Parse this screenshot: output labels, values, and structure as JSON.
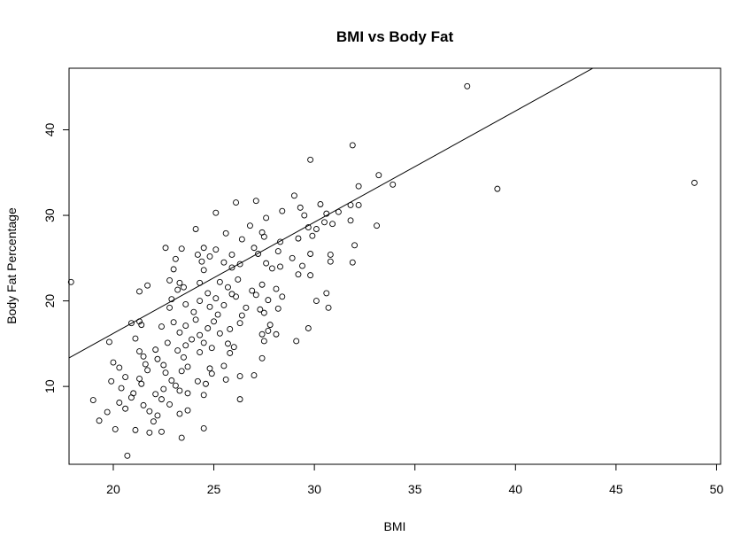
{
  "chart_data": {
    "type": "scatter",
    "title": "BMI vs Body Fat",
    "xlabel": "BMI",
    "ylabel": "Body Fat Percentage",
    "xlim": [
      17.8,
      50.2
    ],
    "ylim": [
      0.9,
      47.2
    ],
    "xticks": [
      20,
      25,
      30,
      35,
      40,
      45,
      50
    ],
    "yticks": [
      10,
      20,
      30,
      40
    ],
    "grid": false,
    "regression_line": {
      "intercept": -9.8,
      "slope": 1.3
    },
    "points": [
      [
        37.6,
        45.1
      ],
      [
        39.1,
        33.1
      ],
      [
        48.9,
        33.8
      ],
      [
        29.8,
        36.5
      ],
      [
        31.9,
        38.2
      ],
      [
        33.2,
        34.7
      ],
      [
        33.9,
        33.6
      ],
      [
        32.2,
        33.4
      ],
      [
        29.0,
        32.3
      ],
      [
        26.1,
        31.5
      ],
      [
        27.1,
        31.7
      ],
      [
        29.3,
        30.9
      ],
      [
        30.3,
        31.3
      ],
      [
        31.8,
        31.2
      ],
      [
        32.2,
        31.2
      ],
      [
        25.1,
        30.3
      ],
      [
        28.4,
        30.5
      ],
      [
        30.6,
        30.2
      ],
      [
        31.2,
        30.4
      ],
      [
        27.6,
        29.7
      ],
      [
        29.5,
        30.0
      ],
      [
        30.5,
        29.2
      ],
      [
        30.9,
        29.0
      ],
      [
        31.8,
        29.4
      ],
      [
        26.8,
        28.8
      ],
      [
        29.7,
        28.6
      ],
      [
        30.1,
        28.4
      ],
      [
        33.1,
        28.8
      ],
      [
        24.1,
        28.4
      ],
      [
        27.4,
        28.0
      ],
      [
        29.9,
        27.6
      ],
      [
        25.6,
        27.9
      ],
      [
        26.4,
        27.2
      ],
      [
        27.5,
        27.5
      ],
      [
        28.3,
        26.9
      ],
      [
        29.2,
        27.3
      ],
      [
        32.0,
        26.5
      ],
      [
        22.6,
        26.2
      ],
      [
        23.4,
        26.1
      ],
      [
        24.5,
        26.2
      ],
      [
        25.1,
        26.0
      ],
      [
        27.0,
        26.2
      ],
      [
        28.2,
        25.8
      ],
      [
        29.8,
        25.5
      ],
      [
        30.8,
        25.4
      ],
      [
        24.2,
        25.4
      ],
      [
        24.8,
        25.2
      ],
      [
        25.9,
        25.4
      ],
      [
        27.2,
        25.5
      ],
      [
        28.9,
        25.0
      ],
      [
        31.9,
        24.5
      ],
      [
        30.8,
        24.6
      ],
      [
        23.1,
        24.9
      ],
      [
        24.4,
        24.6
      ],
      [
        25.5,
        24.5
      ],
      [
        26.3,
        24.3
      ],
      [
        27.6,
        24.4
      ],
      [
        28.3,
        24.0
      ],
      [
        29.4,
        24.1
      ],
      [
        23.0,
        23.7
      ],
      [
        24.5,
        23.6
      ],
      [
        25.9,
        23.9
      ],
      [
        27.9,
        23.8
      ],
      [
        29.2,
        23.1
      ],
      [
        29.8,
        23.0
      ],
      [
        22.8,
        22.4
      ],
      [
        23.3,
        22.1
      ],
      [
        25.3,
        22.2
      ],
      [
        26.2,
        22.5
      ],
      [
        27.4,
        21.9
      ],
      [
        17.9,
        22.2
      ],
      [
        21.7,
        21.8
      ],
      [
        23.5,
        21.6
      ],
      [
        24.3,
        22.1
      ],
      [
        25.7,
        21.6
      ],
      [
        26.9,
        21.2
      ],
      [
        28.1,
        21.4
      ],
      [
        21.3,
        21.1
      ],
      [
        23.2,
        21.3
      ],
      [
        24.7,
        20.9
      ],
      [
        25.9,
        20.8
      ],
      [
        27.1,
        20.7
      ],
      [
        28.4,
        20.5
      ],
      [
        30.6,
        20.9
      ],
      [
        22.9,
        20.2
      ],
      [
        24.3,
        20.0
      ],
      [
        25.1,
        20.3
      ],
      [
        26.1,
        20.5
      ],
      [
        27.7,
        20.1
      ],
      [
        30.1,
        20.0
      ],
      [
        23.6,
        19.6
      ],
      [
        24.8,
        19.3
      ],
      [
        25.5,
        19.5
      ],
      [
        26.6,
        19.2
      ],
      [
        27.3,
        19.0
      ],
      [
        28.2,
        19.1
      ],
      [
        30.7,
        19.2
      ],
      [
        22.8,
        19.2
      ],
      [
        24.0,
        18.7
      ],
      [
        25.2,
        18.4
      ],
      [
        26.4,
        18.3
      ],
      [
        27.5,
        18.6
      ],
      [
        20.9,
        17.4
      ],
      [
        21.3,
        17.6
      ],
      [
        23.0,
        17.5
      ],
      [
        24.1,
        17.8
      ],
      [
        25.0,
        17.6
      ],
      [
        26.3,
        17.4
      ],
      [
        27.8,
        17.2
      ],
      [
        21.4,
        17.2
      ],
      [
        22.4,
        17.0
      ],
      [
        23.6,
        17.1
      ],
      [
        24.7,
        16.8
      ],
      [
        25.8,
        16.7
      ],
      [
        27.7,
        16.5
      ],
      [
        29.7,
        16.8
      ],
      [
        23.3,
        16.3
      ],
      [
        24.3,
        16.0
      ],
      [
        25.3,
        16.2
      ],
      [
        27.4,
        16.1
      ],
      [
        28.1,
        16.1
      ],
      [
        21.1,
        15.6
      ],
      [
        23.9,
        15.5
      ],
      [
        24.5,
        15.1
      ],
      [
        25.7,
        15.0
      ],
      [
        27.5,
        15.3
      ],
      [
        29.1,
        15.3
      ],
      [
        19.8,
        15.2
      ],
      [
        22.7,
        15.1
      ],
      [
        23.6,
        14.8
      ],
      [
        24.9,
        14.5
      ],
      [
        26.0,
        14.6
      ],
      [
        21.3,
        14.1
      ],
      [
        22.1,
        14.3
      ],
      [
        23.2,
        14.2
      ],
      [
        24.3,
        14.0
      ],
      [
        25.8,
        13.9
      ],
      [
        21.5,
        13.5
      ],
      [
        22.2,
        13.2
      ],
      [
        23.5,
        13.4
      ],
      [
        27.4,
        13.3
      ],
      [
        20.0,
        12.8
      ],
      [
        21.6,
        12.6
      ],
      [
        22.5,
        12.5
      ],
      [
        23.7,
        12.3
      ],
      [
        24.8,
        12.1
      ],
      [
        25.5,
        12.4
      ],
      [
        20.3,
        12.2
      ],
      [
        21.7,
        11.9
      ],
      [
        22.6,
        11.6
      ],
      [
        23.4,
        11.8
      ],
      [
        24.9,
        11.5
      ],
      [
        26.3,
        11.2
      ],
      [
        27.0,
        11.3
      ],
      [
        20.6,
        11.1
      ],
      [
        21.3,
        10.9
      ],
      [
        22.9,
        10.7
      ],
      [
        24.2,
        10.6
      ],
      [
        25.6,
        10.8
      ],
      [
        19.9,
        10.6
      ],
      [
        21.4,
        10.3
      ],
      [
        23.1,
        10.1
      ],
      [
        24.6,
        10.3
      ],
      [
        20.4,
        9.8
      ],
      [
        22.5,
        9.7
      ],
      [
        23.3,
        9.5
      ],
      [
        21.0,
        9.2
      ],
      [
        22.1,
        9.1
      ],
      [
        23.7,
        9.2
      ],
      [
        24.5,
        9.0
      ],
      [
        20.9,
        8.7
      ],
      [
        22.4,
        8.5
      ],
      [
        19.0,
        8.4
      ],
      [
        20.3,
        8.1
      ],
      [
        21.5,
        7.8
      ],
      [
        22.8,
        7.9
      ],
      [
        26.3,
        8.5
      ],
      [
        20.6,
        7.4
      ],
      [
        21.8,
        7.1
      ],
      [
        23.7,
        7.2
      ],
      [
        19.7,
        7.0
      ],
      [
        22.2,
        6.6
      ],
      [
        23.3,
        6.8
      ],
      [
        19.3,
        6.0
      ],
      [
        22.0,
        5.9
      ],
      [
        24.5,
        5.1
      ],
      [
        20.1,
        5.0
      ],
      [
        21.1,
        4.9
      ],
      [
        21.8,
        4.6
      ],
      [
        22.4,
        4.7
      ],
      [
        23.4,
        4.0
      ],
      [
        20.7,
        1.9
      ]
    ]
  }
}
